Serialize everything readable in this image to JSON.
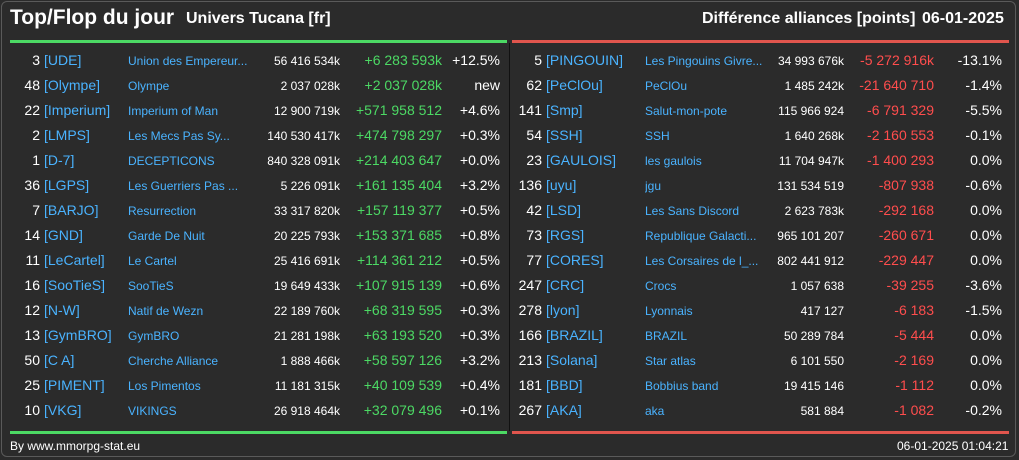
{
  "header": {
    "title": "Top/Flop du jour",
    "subtitle": "Univers Tucana [fr]",
    "right_title": "Différence alliances [points]",
    "date": "06-01-2025"
  },
  "colors": {
    "background": "#2b2b2b",
    "positive": "#4cd964",
    "negative": "#ff4d4d",
    "link": "#4ab3ff"
  },
  "top": [
    {
      "rank": "3",
      "tag": "[UDE]",
      "name": "Union des Empereur...",
      "total": "56 416 534k",
      "diff": "+6 283 593k",
      "pct": "+12.5%"
    },
    {
      "rank": "48",
      "tag": "[Olympe]",
      "name": "Olympe",
      "total": "2 037 028k",
      "diff": "+2 037 028k",
      "pct": "new"
    },
    {
      "rank": "22",
      "tag": "[Imperium]",
      "name": "Imperium of Man",
      "total": "12 900 719k",
      "diff": "+571 958 512",
      "pct": "+4.6%"
    },
    {
      "rank": "2",
      "tag": "[LMPS]",
      "name": "Les Mecs Pas Sy...",
      "total": "140 530 417k",
      "diff": "+474 798 297",
      "pct": "+0.3%"
    },
    {
      "rank": "1",
      "tag": "[D-7]",
      "name": "DECEPTICONS",
      "total": "840 328 091k",
      "diff": "+214 403 647",
      "pct": "+0.0%"
    },
    {
      "rank": "36",
      "tag": "[LGPS]",
      "name": "Les Guerriers Pas ...",
      "total": "5 226 091k",
      "diff": "+161 135 404",
      "pct": "+3.2%"
    },
    {
      "rank": "7",
      "tag": "[BARJO]",
      "name": "Resurrection",
      "total": "33 317 820k",
      "diff": "+157 119 377",
      "pct": "+0.5%"
    },
    {
      "rank": "14",
      "tag": "[GND]",
      "name": "Garde De Nuit",
      "total": "20 225 793k",
      "diff": "+153 371 685",
      "pct": "+0.8%"
    },
    {
      "rank": "11",
      "tag": "[LeCartel]",
      "name": "Le Cartel",
      "total": "25 416 691k",
      "diff": "+114 361 212",
      "pct": "+0.5%"
    },
    {
      "rank": "16",
      "tag": "[SooTieS]",
      "name": "SooTieS",
      "total": "19 649 433k",
      "diff": "+107 915 139",
      "pct": "+0.6%"
    },
    {
      "rank": "12",
      "tag": "[N-W]",
      "name": "Natif de Wezn",
      "total": "22 189 760k",
      "diff": "+68 319 595",
      "pct": "+0.3%"
    },
    {
      "rank": "13",
      "tag": "[GymBRO]",
      "name": "GymBRO",
      "total": "21 281 198k",
      "diff": "+63 193 520",
      "pct": "+0.3%"
    },
    {
      "rank": "50",
      "tag": "[C A]",
      "name": "Cherche Alliance",
      "total": "1 888 466k",
      "diff": "+58 597 126",
      "pct": "+3.2%"
    },
    {
      "rank": "25",
      "tag": "[PIMENT]",
      "name": "Los Pimentos",
      "total": "11 181 315k",
      "diff": "+40 109 539",
      "pct": "+0.4%"
    },
    {
      "rank": "10",
      "tag": "[VKG]",
      "name": "VIKINGS",
      "total": "26 918 464k",
      "diff": "+32 079 496",
      "pct": "+0.1%"
    }
  ],
  "flop": [
    {
      "rank": "5",
      "tag": "[PINGOUIN]",
      "name": "Les Pingouins Givre...",
      "total": "34 993 676k",
      "diff": "-5 272 916k",
      "pct": "-13.1%"
    },
    {
      "rank": "62",
      "tag": "[PeClOu]",
      "name": "PeClOu",
      "total": "1 485 242k",
      "diff": "-21 640 710",
      "pct": "-1.4%"
    },
    {
      "rank": "141",
      "tag": "[Smp]",
      "name": "Salut-mon-pote",
      "total": "115 966 924",
      "diff": "-6 791 329",
      "pct": "-5.5%"
    },
    {
      "rank": "54",
      "tag": "[SSH]",
      "name": "SSH",
      "total": "1 640 268k",
      "diff": "-2 160 553",
      "pct": "-0.1%"
    },
    {
      "rank": "23",
      "tag": "[GAULOIS]",
      "name": "les gaulois",
      "total": "11 704 947k",
      "diff": "-1 400 293",
      "pct": "0.0%"
    },
    {
      "rank": "136",
      "tag": "[uyu]",
      "name": "jgu",
      "total": "131 534 519",
      "diff": "-807 938",
      "pct": "-0.6%"
    },
    {
      "rank": "42",
      "tag": "[LSD]",
      "name": "Les Sans Discord",
      "total": "2 623 783k",
      "diff": "-292 168",
      "pct": "0.0%"
    },
    {
      "rank": "73",
      "tag": "[RGS]",
      "name": "Republique Galacti...",
      "total": "965 101 207",
      "diff": "-260 671",
      "pct": "0.0%"
    },
    {
      "rank": "77",
      "tag": "[CORES]",
      "name": "Les Corsaires de l_...",
      "total": "802 441 912",
      "diff": "-229 447",
      "pct": "0.0%"
    },
    {
      "rank": "247",
      "tag": "[CRC]",
      "name": "Crocs",
      "total": "1 057 638",
      "diff": "-39 255",
      "pct": "-3.6%"
    },
    {
      "rank": "278",
      "tag": "[lyon]",
      "name": "Lyonnais",
      "total": "417 127",
      "diff": "-6 183",
      "pct": "-1.5%"
    },
    {
      "rank": "166",
      "tag": "[BRAZIL]",
      "name": "BRAZIL",
      "total": "50 289 784",
      "diff": "-5 444",
      "pct": "0.0%"
    },
    {
      "rank": "213",
      "tag": "[Solana]",
      "name": "Star atlas",
      "total": "6 101 550",
      "diff": "-2 169",
      "pct": "0.0%"
    },
    {
      "rank": "181",
      "tag": "[BBD]",
      "name": "Bobbius band",
      "total": "19 415 146",
      "diff": "-1 112",
      "pct": "0.0%"
    },
    {
      "rank": "267",
      "tag": "[AKA]",
      "name": "aka",
      "total": "581 884",
      "diff": "-1 082",
      "pct": "-0.2%"
    }
  ],
  "footer": {
    "source": "By www.mmorpg-stat.eu",
    "timestamp": "06-01-2025 01:04:21"
  }
}
